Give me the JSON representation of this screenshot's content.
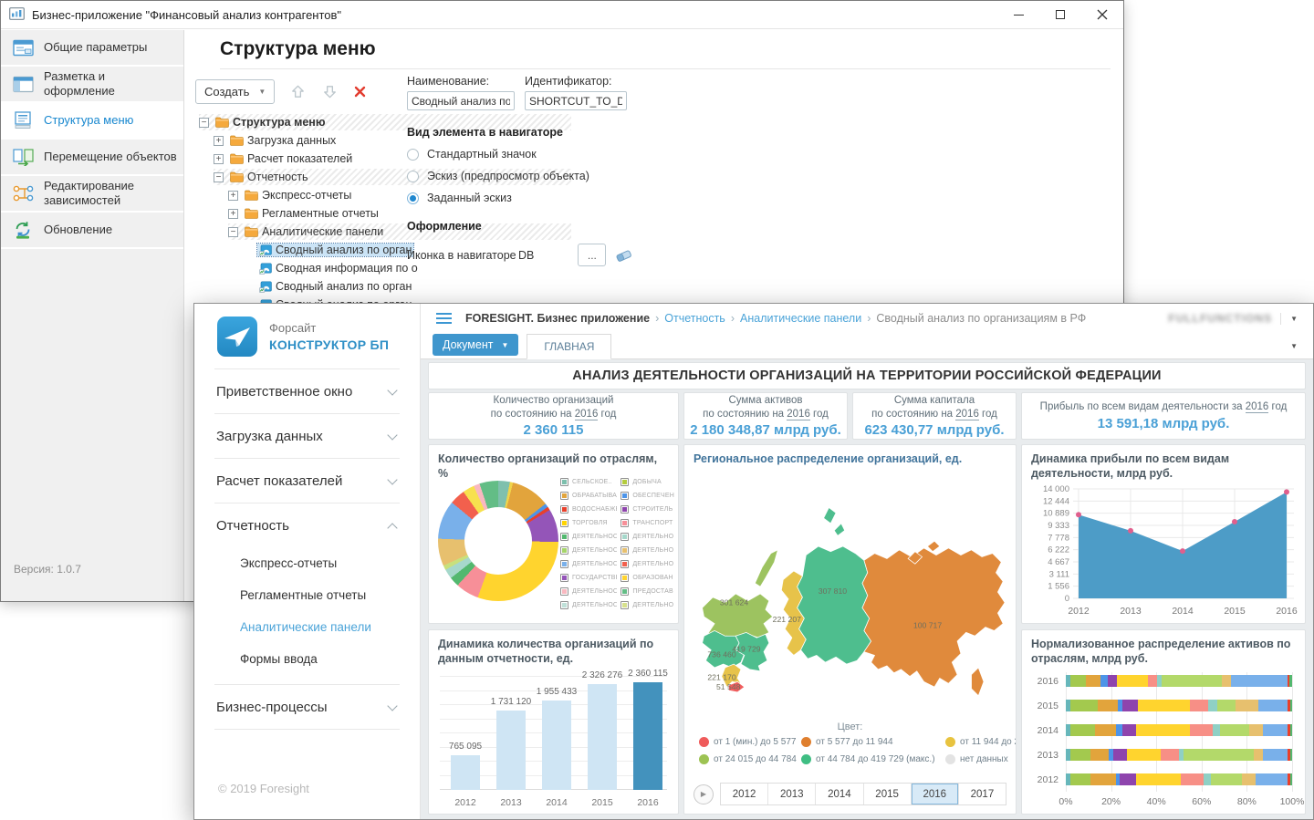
{
  "back_window": {
    "title": "Бизнес-приложение \"Финансовый анализ контрагентов\"",
    "sidebar": {
      "items": [
        {
          "key": "general-params",
          "label": "Общие параметры",
          "icon": "window-icon",
          "active": false
        },
        {
          "key": "layout-design",
          "label": "Разметка и оформление",
          "icon": "layout-icon",
          "active": false
        },
        {
          "key": "menu-structure",
          "label": "Структура меню",
          "icon": "menu-structure-icon",
          "active": true
        },
        {
          "key": "move-objects",
          "label": "Перемещение объектов",
          "icon": "move-objects-icon",
          "active": false
        },
        {
          "key": "edit-dependencies",
          "label": "Редактирование зависимостей",
          "icon": "dependencies-icon",
          "active": false
        },
        {
          "key": "update",
          "label": "Обновление",
          "icon": "refresh-icon",
          "active": false
        }
      ],
      "version": "Версия: 1.0.7"
    },
    "page_title": "Структура меню",
    "toolbar": {
      "create_label": "Создать"
    },
    "tree": [
      {
        "label": "Структура меню",
        "level": 0,
        "expander": "minus",
        "bold": true,
        "hatched": true,
        "icon": "folder"
      },
      {
        "label": "Загрузка данных",
        "level": 1,
        "expander": "plus",
        "icon": "folder"
      },
      {
        "label": "Расчет показателей",
        "level": 1,
        "expander": "plus",
        "icon": "folder"
      },
      {
        "label": "Отчетность",
        "level": 1,
        "expander": "minus",
        "hatched": true,
        "icon": "folder"
      },
      {
        "label": "Экспресс-отчеты",
        "level": 2,
        "expander": "plus",
        "icon": "folder"
      },
      {
        "label": "Регламентные отчеты",
        "level": 2,
        "expander": "plus",
        "icon": "folder"
      },
      {
        "label": "Аналитические панели",
        "level": 2,
        "expander": "minus",
        "hatched": true,
        "icon": "folder"
      },
      {
        "label": "Сводный анализ по орган",
        "level": 3,
        "icon": "dashboard",
        "selected": true
      },
      {
        "label": "Сводная информация по о",
        "level": 3,
        "icon": "dashboard"
      },
      {
        "label": "Сводный анализ по орган",
        "level": 3,
        "icon": "dashboard"
      },
      {
        "label": "Сводный анализ по орган",
        "level": 3,
        "icon": "dashboard"
      }
    ],
    "form": {
      "name_label": "Наименование:",
      "name_value": "Сводный анализ по ор",
      "id_label": "Идентификатор:",
      "id_value": "SHORTCUT_TO_DASH",
      "view_section_title": "Вид элемента в навигаторе",
      "radio_options": [
        "Стандартный значок",
        "Эскиз (предпросмотр объекта)",
        "Заданный эскиз"
      ],
      "selected_radio": 2,
      "design_section_title": "Оформление",
      "icon_field_label": "Иконка в навигаторе",
      "icon_field_value": "DB",
      "browse_button_label": "..."
    }
  },
  "front_window": {
    "logo_text_top": "Форсайт",
    "logo_text_bottom": "КОНСТРУКТОР БП",
    "breadcrumb": [
      {
        "label": "FORESIGHT. Бизнес приложение",
        "style": "root"
      },
      {
        "label": "Отчетность",
        "style": "link"
      },
      {
        "label": "Аналитические панели",
        "style": "link"
      },
      {
        "label": "Сводный анализ по организациям в РФ",
        "style": "current"
      }
    ],
    "user_label": "FULLFUNCTIONS",
    "document_button_label": "Документ",
    "main_tab_label": "ГЛАВНАЯ",
    "menu": [
      {
        "key": "welcome",
        "label": "Приветственное окно",
        "expanded": false
      },
      {
        "key": "data-load",
        "label": "Загрузка данных",
        "expanded": false
      },
      {
        "key": "indicators",
        "label": "Расчет показателей",
        "expanded": false
      },
      {
        "key": "reports",
        "label": "Отчетность",
        "expanded": true,
        "children": [
          {
            "key": "express-reports",
            "label": "Экспресс-отчеты",
            "active": false
          },
          {
            "key": "regulated-reports",
            "label": "Регламентные отчеты",
            "active": false
          },
          {
            "key": "analytic-panels",
            "label": "Аналитические панели",
            "active": true
          },
          {
            "key": "input-forms",
            "label": "Формы ввода",
            "active": false
          }
        ]
      },
      {
        "key": "business-processes",
        "label": "Бизнес-процессы",
        "expanded": false
      }
    ],
    "copyright": "© 2019 Foresight",
    "dashboard": {
      "title": "АНАЛИЗ ДЕЯТЕЛЬНОСТИ ОРГАНИЗАЦИЙ НА ТЕРРИТОРИИ РОССИЙСКОЙ ФЕДЕРАЦИИ",
      "kpis": [
        {
          "title_parts": [
            "Количество организаций\nпо состоянию на ",
            {
              "u": "2016"
            },
            " год"
          ],
          "value": "2 360 115"
        },
        {
          "title_parts": [
            "Сумма активов\nпо состоянию на ",
            {
              "u": "2016"
            },
            " год"
          ],
          "value": "2 180 348,87 млрд руб."
        },
        {
          "title_parts": [
            "Сумма капитала\nпо состоянию на ",
            {
              "u": "2016"
            },
            " год"
          ],
          "value": "623 430,77 млрд руб."
        },
        {
          "title_parts": [
            "Прибыль по всем видам деятельности за ",
            {
              "u": "2016"
            },
            " год"
          ],
          "value": "13 591,18 млрд руб."
        }
      ]
    }
  },
  "chart_data": [
    {
      "id": "industry_donut",
      "type": "pie",
      "title": "Количество организаций по отраслям, %",
      "slices": [
        {
          "color": "#7fc0ad",
          "value": 3.0
        },
        {
          "color": "#f0d44a",
          "value": 0.8
        },
        {
          "color": "#e2a43c",
          "value": 10.0
        },
        {
          "color": "#4d94e8",
          "value": 1.0
        },
        {
          "color": "#e8402c",
          "value": 0.9
        },
        {
          "color": "#9455b8",
          "value": 8.5
        },
        {
          "color": "#ffd42e",
          "value": 29.0
        },
        {
          "color": "#f78f98",
          "value": 6.0
        },
        {
          "color": "#53b86f",
          "value": 2.5
        },
        {
          "color": "#a6d8cb",
          "value": 2.5
        },
        {
          "color": "#c8e07c",
          "value": 1.2
        },
        {
          "color": "#e7c06e",
          "value": 7.0
        },
        {
          "color": "#79b0ea",
          "value": 10.0
        },
        {
          "color": "#f2604d",
          "value": 4.0
        },
        {
          "color": "#f7e14e",
          "value": 3.0
        },
        {
          "color": "#f9b8c0",
          "value": 1.6
        },
        {
          "color": "#63bd86",
          "value": 4.8
        }
      ],
      "legend": [
        {
          "color": "#7cbfad",
          "label": "СЕЛЬСКОЕ.."
        },
        {
          "color": "#e2a43c",
          "label": "ОБРАБАТЫВАЮ..."
        },
        {
          "color": "#e8402c",
          "label": "ВОДОСНАБЖЕН..."
        },
        {
          "color": "#ffd400",
          "label": "ТОРГОВЛЯ"
        },
        {
          "color": "#53b86f",
          "label": "ДЕЯТЕЛЬНОСТЬ"
        },
        {
          "color": "#a5d46a",
          "label": "ДЕЯТЕЛЬНОСТЬ"
        },
        {
          "color": "#79b0ea",
          "label": "ДЕЯТЕЛЬНОСТЬ"
        },
        {
          "color": "#9455b8",
          "label": "ГОСУДАРСТВЕН..."
        },
        {
          "color": "#f9b8c0",
          "label": "ДЕЯТЕЛЬНОСТЬ В"
        },
        {
          "color": "#bfe0d8",
          "label": "ДЕЯТЕЛЬНОСТЬ"
        },
        {
          "color": "#b4cc3e",
          "label": "ДОБЫЧА"
        },
        {
          "color": "#4d94e8",
          "label": "ОБЕСПЕЧЕН"
        },
        {
          "color": "#8e44ad",
          "label": "СТРОИТЕЛЬ"
        },
        {
          "color": "#f78f98",
          "label": "ТРАНСПОРТ"
        },
        {
          "color": "#a6d8cb",
          "label": "ДЕЯТЕЛЬНО"
        },
        {
          "color": "#e7c06e",
          "label": "ДЕЯТЕЛЬНО"
        },
        {
          "color": "#f2604d",
          "label": "ДЕЯТЕЛЬНО"
        },
        {
          "color": "#ffd42e",
          "label": "ОБРАЗОВАН"
        },
        {
          "color": "#63bd86",
          "label": "ПРЕДОСТАВ"
        },
        {
          "color": "#d6e08c",
          "label": "ДЕЯТЕЛЬНО"
        }
      ]
    },
    {
      "id": "org_dynamics",
      "type": "bar",
      "title": "Динамика количества организаций по данным отчетности, ед.",
      "categories": [
        "2012",
        "2013",
        "2014",
        "2015",
        "2016"
      ],
      "values": [
        765095,
        1731120,
        1955433,
        2326276,
        2360115
      ],
      "labels": [
        "765 095",
        "1 731 120",
        "1 955 433",
        "2 326 276",
        "2 360 115"
      ],
      "highlight_index": 4,
      "ylim": [
        0,
        2500000
      ]
    },
    {
      "id": "region_map",
      "type": "map",
      "title": "Региональное распределение организаций, ед.",
      "regions": [
        {
          "id": "nw",
          "label": "301 624",
          "color": "#9dc360"
        },
        {
          "id": "central",
          "label": "736 460",
          "color": "#4ebe8e"
        },
        {
          "id": "volga",
          "label": "419 729",
          "color": "#4ebe8e"
        },
        {
          "id": "south",
          "label": "221 170",
          "color": "#e7c34a"
        },
        {
          "id": "ncaucasus",
          "label": "51 548",
          "color": "#ef5d5d"
        },
        {
          "id": "ural",
          "label": "221 207",
          "color": "#e7c34a"
        },
        {
          "id": "siberia",
          "label": "307 810",
          "color": "#4ebe8e"
        },
        {
          "id": "fareast",
          "label": "100 717",
          "color": "#e08a3c"
        }
      ],
      "legend_title": "Цвет:",
      "legend": [
        {
          "color": "#ef5b5b",
          "label": "от 1 (мин.) до 5 577"
        },
        {
          "color": "#df7f2e",
          "label": "от 5 577 до 11 944"
        },
        {
          "color": "#e8c33f",
          "label": "от 11 944 до 24 015"
        },
        {
          "color": "#9dc353",
          "label": "от 24 015 до 44 784"
        },
        {
          "color": "#3fbe83",
          "label": "от 44 784 до 419 729 (макс.)"
        },
        {
          "color": "#e3e3e3",
          "label": "нет данных"
        }
      ],
      "years": [
        "2012",
        "2013",
        "2014",
        "2015",
        "2016",
        "2017"
      ],
      "active_year": "2016"
    },
    {
      "id": "profit_dynamics",
      "type": "area",
      "title": "Динамика прибыли по всем видам деятельности, млрд руб.",
      "x": [
        "2012",
        "2013",
        "2014",
        "2015",
        "2016"
      ],
      "values": [
        10700,
        8650,
        6050,
        9800,
        13600
      ],
      "yticks": [
        "14 000",
        "12 444",
        "10 889",
        "9 333",
        "7 778",
        "6 222",
        "4 667",
        "3 111",
        "1 556",
        "0"
      ],
      "ylim": [
        0,
        14000
      ]
    },
    {
      "id": "assets_distribution",
      "type": "stacked_bar_h",
      "title": "Нормализованное распределение активов по отраслям, млрд руб.",
      "categories": [
        "2016",
        "2015",
        "2014",
        "2013",
        "2012"
      ],
      "palette": [
        "#67b7bb",
        "#a3c94e",
        "#e2a43c",
        "#4d94e8",
        "#8e44ad",
        "#ffd42e",
        "#f78f86",
        "#8fd0c5",
        "#b3d96a",
        "#e7c06e",
        "#79b0ea",
        "#e8402c",
        "#53b86f"
      ],
      "rows": [
        [
          2,
          7,
          6.5,
          3,
          4,
          14,
          4,
          2,
          26.5,
          4,
          25,
          1,
          1
        ],
        [
          2,
          12,
          9,
          2,
          7,
          23,
          8,
          4,
          8,
          10,
          13,
          1.4,
          0.6
        ],
        [
          2,
          11,
          9,
          3,
          6,
          24,
          10,
          3,
          13,
          6,
          11,
          1.4,
          0.6
        ],
        [
          2,
          9,
          8,
          2,
          6,
          15,
          8,
          2,
          31,
          4,
          11,
          1.4,
          0.6
        ],
        [
          2,
          9,
          11,
          2,
          7,
          20,
          10,
          3,
          14,
          6,
          14,
          1.4,
          0.6
        ]
      ],
      "xticks": [
        "0%",
        "20%",
        "40%",
        "60%",
        "80%",
        "100%"
      ]
    }
  ]
}
